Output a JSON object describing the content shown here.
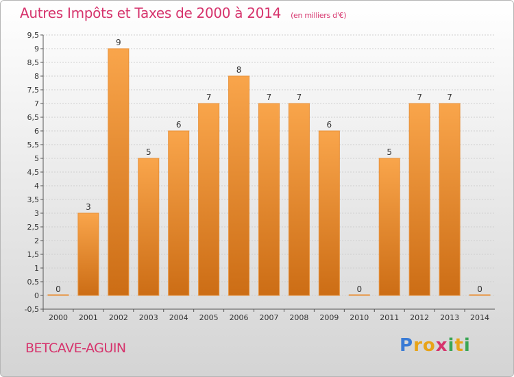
{
  "header": {
    "title": "Autres Impôts et Taxes de 2000 à 2014",
    "unit": "(en milliers d'€)"
  },
  "footer": {
    "commune": "BETCAVE-AGUIN",
    "logo": {
      "p": "P",
      "r": "r",
      "o": "o",
      "x": "x",
      "i": "i",
      "t": "t",
      "i2": "i"
    }
  },
  "colors": {
    "bar_top": "#f9a54b",
    "bar_bottom": "#cc6d15",
    "title": "#d6336c",
    "grid": "#cfcfcf"
  },
  "chart_data": {
    "type": "bar",
    "title": "Autres Impôts et Taxes de 2000 à 2014",
    "subtitle": "(en milliers d'€)",
    "categories": [
      "2000",
      "2001",
      "2002",
      "2003",
      "2004",
      "2005",
      "2006",
      "2007",
      "2008",
      "2009",
      "2010",
      "2011",
      "2012",
      "2013",
      "2014"
    ],
    "values": [
      0,
      3,
      9,
      5,
      6,
      7,
      8,
      7,
      7,
      6,
      0,
      5,
      7,
      7,
      0
    ],
    "data_labels": [
      "0",
      "3",
      "9",
      "5",
      "6",
      "7",
      "8",
      "7",
      "7",
      "6",
      "0",
      "5",
      "7",
      "7",
      "0"
    ],
    "ylim": [
      -0.5,
      9.5
    ],
    "yticks": [
      "-0,5",
      "0",
      "0,5",
      "1",
      "1,5",
      "2",
      "2,5",
      "3",
      "3,5",
      "4",
      "4,5",
      "5",
      "5,5",
      "6",
      "6,5",
      "7",
      "7,5",
      "8",
      "8,5",
      "9",
      "9,5"
    ],
    "grid": true,
    "legend": "none"
  }
}
